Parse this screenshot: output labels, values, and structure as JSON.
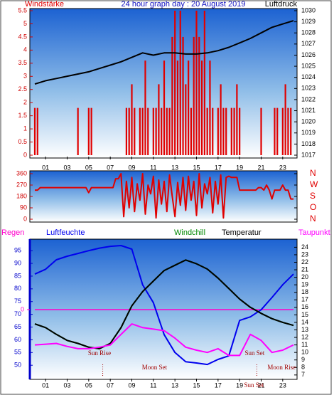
{
  "chart_data": [
    {
      "type": "combo",
      "title": "24 hour graph day : 20 August 2019",
      "xlim": [
        0,
        24
      ],
      "xticks": [
        {
          "value": 1,
          "label": "01"
        },
        {
          "value": 3,
          "label": "03"
        },
        {
          "value": 5,
          "label": "05"
        },
        {
          "value": 7,
          "label": "07"
        },
        {
          "value": 9,
          "label": "09"
        },
        {
          "value": 11,
          "label": "11"
        },
        {
          "value": 13,
          "label": "13"
        },
        {
          "value": 15,
          "label": "15"
        },
        {
          "value": 17,
          "label": "17"
        },
        {
          "value": 19,
          "label": "19"
        },
        {
          "value": 21,
          "label": "21"
        },
        {
          "value": 23,
          "label": "23"
        }
      ],
      "ylim": [
        0,
        5.5
      ],
      "yticks": [
        0,
        0.5,
        1,
        1.5,
        2,
        2.5,
        3,
        3.5,
        4,
        4.5,
        5,
        5.5
      ],
      "y2lim": [
        1017,
        1030
      ],
      "y2ticks": [
        1017,
        1018,
        1019,
        1020,
        1021,
        1022,
        1023,
        1024,
        1025,
        1026,
        1027,
        1028,
        1029,
        1030
      ],
      "series": [
        {
          "name": "Windstärke",
          "color": "#e00000",
          "kind": "spike",
          "x": [
            0,
            0.25,
            0.5,
            0.75,
            1,
            1.25,
            1.5,
            1.75,
            2,
            2.25,
            2.5,
            2.75,
            3,
            3.25,
            3.5,
            3.75,
            4,
            4.25,
            4.5,
            4.75,
            5,
            5.25,
            5.5,
            5.75,
            6,
            6.25,
            6.5,
            6.75,
            7,
            7.25,
            7.5,
            7.75,
            8,
            8.25,
            8.5,
            8.75,
            9,
            9.25,
            9.5,
            9.75,
            10,
            10.25,
            10.5,
            10.75,
            11,
            11.25,
            11.5,
            11.75,
            12,
            12.25,
            12.5,
            12.75,
            13,
            13.25,
            13.5,
            13.75,
            14,
            14.25,
            14.5,
            14.75,
            15,
            15.25,
            15.5,
            15.75,
            16,
            16.25,
            16.5,
            16.75,
            17,
            17.25,
            17.5,
            17.75,
            18,
            18.25,
            18.5,
            18.75,
            19,
            19.25,
            19.5,
            19.75,
            20,
            20.25,
            20.5,
            20.75,
            21,
            21.25,
            21.5,
            21.75,
            22,
            22.25,
            22.5,
            22.75,
            23,
            23.25,
            23.5,
            23.75,
            24
          ],
          "values": [
            1.8,
            1.8,
            0,
            0,
            0,
            0,
            0,
            0,
            0,
            0,
            0,
            0,
            0,
            0,
            0,
            0,
            1.8,
            0,
            0,
            0,
            1.8,
            1.8,
            0,
            0,
            0,
            0,
            0,
            0,
            0,
            0,
            0,
            0,
            0,
            0,
            1.8,
            1.8,
            2.7,
            1.8,
            0,
            1.8,
            1.8,
            3.6,
            1.8,
            0,
            1.8,
            1.8,
            2.7,
            1.8,
            3.6,
            1.8,
            1.8,
            4.5,
            5.5,
            3.6,
            5.5,
            4.5,
            2.7,
            3.6,
            1.8,
            4.5,
            5.5,
            4.5,
            3.6,
            5.5,
            1.8,
            3.6,
            1.8,
            0,
            1.8,
            2.7,
            1.8,
            1.8,
            0,
            1.8,
            1.8,
            2.7,
            1.8,
            0,
            0,
            0,
            0,
            0,
            0,
            0,
            1.8,
            0,
            0,
            0,
            0,
            1.8,
            1.8,
            0,
            1.8,
            2.7,
            1.8,
            1.8,
            0
          ]
        },
        {
          "name": "Luftdruck",
          "color": "#000000",
          "kind": "line",
          "axis": "y2",
          "x": [
            0,
            1,
            2,
            3,
            4,
            5,
            6,
            7,
            8,
            9,
            10,
            11,
            12,
            13,
            14,
            15,
            16,
            17,
            18,
            19,
            20,
            21,
            22,
            23,
            24
          ],
          "values": [
            1023.4,
            1023.7,
            1023.9,
            1024.1,
            1024.3,
            1024.5,
            1024.8,
            1025.1,
            1025.4,
            1025.8,
            1026.2,
            1026.0,
            1026.2,
            1026.2,
            1026.1,
            1026.1,
            1026.2,
            1026.4,
            1026.7,
            1027.1,
            1027.5,
            1028.0,
            1028.5,
            1028.8,
            1029.1
          ]
        }
      ]
    },
    {
      "type": "line",
      "xlim": [
        0,
        24
      ],
      "ylim": [
        0,
        360
      ],
      "yticks": [
        0,
        90,
        180,
        270,
        360
      ],
      "y2lim": [
        0,
        360
      ],
      "y2ticks": [
        {
          "value": 360,
          "label": "N"
        },
        {
          "value": 270,
          "label": "W"
        },
        {
          "value": 180,
          "label": "S"
        },
        {
          "value": 90,
          "label": "O"
        },
        {
          "value": 0,
          "label": "N"
        }
      ],
      "series": [
        {
          "color": "#e00000",
          "x": [
            0,
            0.25,
            0.5,
            0.75,
            1,
            1.25,
            1.5,
            1.75,
            2,
            2.25,
            2.5,
            2.75,
            3,
            3.25,
            3.5,
            3.75,
            4,
            4.25,
            4.5,
            4.75,
            5,
            5.25,
            5.5,
            5.75,
            6,
            6.25,
            6.5,
            6.75,
            7,
            7.25,
            7.5,
            7.75,
            8,
            8.25,
            8.5,
            8.75,
            9,
            9.25,
            9.5,
            9.75,
            10,
            10.25,
            10.5,
            10.75,
            11,
            11.25,
            11.5,
            11.75,
            12,
            12.25,
            12.5,
            12.75,
            13,
            13.25,
            13.5,
            13.75,
            14,
            14.25,
            14.5,
            14.75,
            15,
            15.25,
            15.5,
            15.75,
            16,
            16.25,
            16.5,
            16.75,
            17,
            17.25,
            17.5,
            17.75,
            18,
            18.25,
            18.5,
            18.75,
            19,
            19.25,
            19.5,
            19.75,
            20,
            20.25,
            20.5,
            20.75,
            21,
            21.25,
            21.5,
            21.75,
            22,
            22.25,
            22.5,
            22.75,
            23,
            23.25,
            23.5,
            23.75,
            24
          ],
          "values": [
            230,
            230,
            250,
            250,
            250,
            250,
            250,
            250,
            250,
            250,
            250,
            250,
            250,
            250,
            250,
            250,
            250,
            250,
            250,
            250,
            210,
            250,
            250,
            250,
            250,
            250,
            250,
            250,
            250,
            250,
            320,
            320,
            360,
            20,
            300,
            90,
            330,
            60,
            280,
            150,
            360,
            40,
            270,
            200,
            340,
            10,
            310,
            120,
            300,
            60,
            350,
            180,
            20,
            290,
            110,
            330,
            70,
            340,
            150,
            300,
            30,
            360,
            90,
            280,
            200,
            330,
            50,
            300,
            120,
            350,
            10,
            330,
            340,
            330,
            330,
            330,
            230,
            230,
            230,
            230,
            230,
            230,
            230,
            250,
            250,
            230,
            270,
            230,
            160,
            230,
            230,
            230,
            270,
            230,
            230,
            160,
            160
          ]
        }
      ]
    },
    {
      "type": "line",
      "xlim": [
        0,
        24
      ],
      "xticks": [
        {
          "value": 1,
          "label": "01"
        },
        {
          "value": 3,
          "label": "03"
        },
        {
          "value": 5,
          "label": "05"
        },
        {
          "value": 7,
          "label": "07"
        },
        {
          "value": 9,
          "label": "09"
        },
        {
          "value": 11,
          "label": "11"
        },
        {
          "value": 13,
          "label": "13"
        },
        {
          "value": 15,
          "label": "15"
        },
        {
          "value": 17,
          "label": "17"
        },
        {
          "value": 19,
          "label": "19"
        },
        {
          "value": 21,
          "label": "21"
        },
        {
          "value": 23,
          "label": "23"
        }
      ],
      "ylim": [
        45.3,
        98.4
      ],
      "yticks": [
        50,
        55,
        60,
        65,
        70,
        75,
        80,
        85,
        90,
        95
      ],
      "y2lim": [
        6.7,
        24.7
      ],
      "y2ticks": [
        7,
        8,
        9,
        10,
        11,
        12,
        13,
        14,
        15,
        16,
        17,
        18,
        19,
        20,
        21,
        22,
        23,
        24
      ],
      "y3ticks": [
        0
      ],
      "series": [
        {
          "name": "Regen",
          "color": "#ff00cc",
          "axis": "y3",
          "x": [
            0,
            24
          ],
          "values": [
            0,
            0
          ]
        },
        {
          "name": "Luftfeuchte",
          "color": "#0000ee",
          "x": [
            0,
            1,
            2,
            3,
            4,
            5,
            6,
            7,
            8,
            9,
            10,
            11,
            12,
            13,
            14,
            15,
            16,
            17,
            18,
            19,
            20,
            21,
            22,
            23,
            24
          ],
          "values": [
            85.8,
            87.7,
            91.4,
            92.8,
            93.9,
            95,
            96,
            96.7,
            97,
            95.6,
            81.6,
            74.6,
            62,
            55,
            51.4,
            50.9,
            50.3,
            52.3,
            53.7,
            67.6,
            69,
            71.8,
            76.6,
            81.6,
            85.8
          ]
        },
        {
          "name": "Windchill",
          "color": "#008800",
          "axis": "y2",
          "x": [
            0,
            1,
            2,
            3,
            4,
            5,
            6,
            7,
            8,
            9,
            10,
            11,
            12,
            13,
            14,
            15,
            16,
            17,
            18,
            19,
            20,
            21,
            22,
            23,
            24
          ],
          "values": [
            13.8,
            13.3,
            12.4,
            11.6,
            11.2,
            10.7,
            10.5,
            11.2,
            13.3,
            16.2,
            18.1,
            19.5,
            20.9,
            21.6,
            22.3,
            21.8,
            21.1,
            19.9,
            18.5,
            17.1,
            16,
            15.2,
            14.5,
            14,
            13.6
          ]
        },
        {
          "name": "Temperatur",
          "color": "#000000",
          "axis": "y2",
          "x": [
            0,
            1,
            2,
            3,
            4,
            5,
            6,
            7,
            8,
            9,
            10,
            11,
            12,
            13,
            14,
            15,
            16,
            17,
            18,
            19,
            20,
            21,
            22,
            23,
            24
          ],
          "values": [
            13.8,
            13.3,
            12.4,
            11.6,
            11.2,
            10.7,
            10.5,
            11.2,
            13.3,
            16.2,
            18.1,
            19.5,
            20.9,
            21.6,
            22.3,
            21.8,
            21.1,
            19.9,
            18.5,
            17.1,
            16,
            15.2,
            14.5,
            14,
            13.6
          ]
        },
        {
          "name": "Taupunkt",
          "color": "#ff00ff",
          "axis": "y2",
          "x": [
            0,
            1,
            2,
            3,
            4,
            5,
            6,
            7,
            8,
            9,
            10,
            11,
            12,
            13,
            14,
            15,
            16,
            17,
            18,
            19,
            20,
            21,
            22,
            23,
            24
          ],
          "values": [
            11,
            11.1,
            11.2,
            10.8,
            10.5,
            10.5,
            10.7,
            11,
            12.4,
            13.8,
            13.3,
            13.1,
            12.9,
            11.9,
            10.7,
            10.3,
            10,
            10.5,
            9.6,
            9.6,
            12.4,
            11.6,
            10,
            10.3,
            11
          ]
        }
      ],
      "events": [
        {
          "text": "Sun Rise",
          "x": 6
        },
        {
          "text": "Moon Set",
          "x": 11.1
        },
        {
          "text": "Sun Set",
          "x": 20.4
        },
        {
          "text": "Moon Rise",
          "x": 22.9
        }
      ],
      "markers": [
        {
          "x": 6.3
        },
        {
          "label": "Sun Set",
          "x": 20.6
        }
      ]
    }
  ]
}
